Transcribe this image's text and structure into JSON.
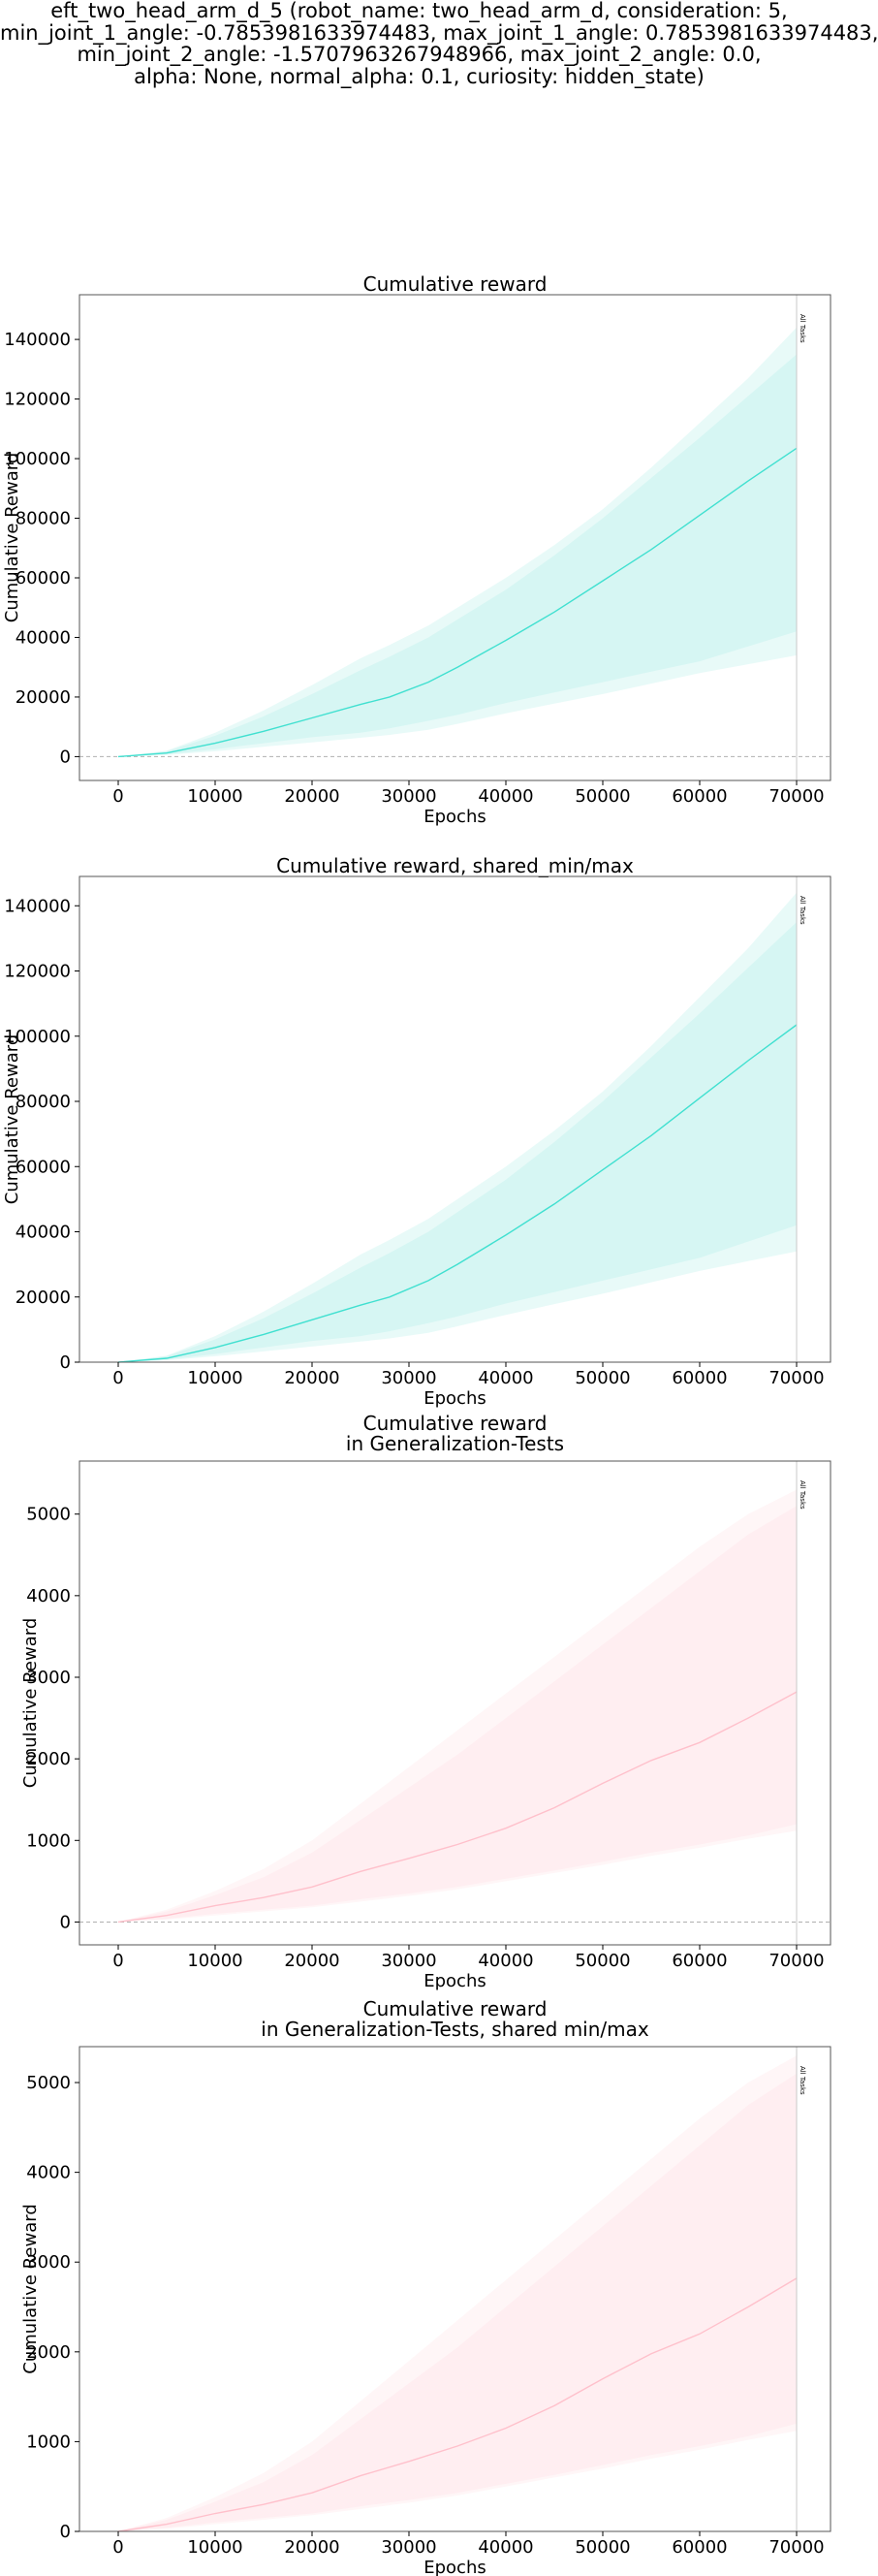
{
  "suptitle": [
    "eft_two_head_arm_d_5 (robot_name: two_head_arm_d, consideration: 5,",
    "min_joint_1_angle: -0.7853981633974483, max_joint_1_angle: 0.7853981633974483,",
    "min_joint_2_angle: -1.5707963267948966, max_joint_2_angle: 0.0,",
    "alpha: None, normal_alpha: 0.1, curiosity: hidden_state)"
  ],
  "colors": {
    "train": "#40e0d0",
    "train_band": "#d6f6f3",
    "test": "#ffc0cb",
    "test_band": "#ffeef1"
  },
  "chart_data": [
    {
      "type": "line",
      "title": [
        "Cumulative reward"
      ],
      "xlabel": "Epochs",
      "ylabel": "Cumulative Reward",
      "xlim": [
        -4000,
        73500
      ],
      "ylim": [
        -8000,
        155000
      ],
      "xticks": [
        0,
        10000,
        20000,
        30000,
        40000,
        50000,
        60000,
        70000
      ],
      "yticks": [
        0,
        20000,
        40000,
        60000,
        80000,
        100000,
        120000,
        140000
      ],
      "zero_line": true,
      "vline": {
        "x": 70000,
        "label": "All Tasks"
      },
      "color": "train",
      "series": [
        {
          "x": [
            0,
            5000,
            10000,
            15000,
            20000,
            25000,
            28000,
            32000,
            35000,
            40000,
            45000,
            50000,
            55000,
            60000,
            65000,
            70000
          ],
          "mean": [
            0,
            1200,
            4500,
            8500,
            13000,
            17500,
            20000,
            25000,
            30000,
            39000,
            48500,
            59000,
            69500,
            81000,
            92500,
            103500
          ],
          "min": [
            0,
            800,
            2500,
            4500,
            6500,
            8000,
            9500,
            12000,
            14000,
            18000,
            21500,
            25000,
            28500,
            32000,
            37000,
            42000
          ],
          "max": [
            0,
            1800,
            7000,
            13500,
            21000,
            29000,
            33500,
            40000,
            46000,
            56000,
            67500,
            80000,
            93500,
            107000,
            121000,
            135000
          ],
          "outer_min": [
            0,
            600,
            1800,
            3300,
            4800,
            6300,
            7300,
            9000,
            11000,
            14500,
            17800,
            21000,
            24500,
            28000,
            31000,
            34000
          ],
          "outer_max": [
            0,
            2000,
            8000,
            15500,
            24000,
            33000,
            37500,
            44000,
            50000,
            60000,
            71000,
            83000,
            97000,
            112000,
            127000,
            144000
          ]
        }
      ]
    },
    {
      "type": "line",
      "title": [
        "Cumulative reward, shared_min/max"
      ],
      "xlabel": "Epochs",
      "ylabel": "Cumulative Reward",
      "xlim": [
        -4000,
        73500
      ],
      "ylim": [
        0,
        149000
      ],
      "xticks": [
        0,
        10000,
        20000,
        30000,
        40000,
        50000,
        60000,
        70000
      ],
      "yticks": [
        0,
        20000,
        40000,
        60000,
        80000,
        100000,
        120000,
        140000
      ],
      "zero_line": false,
      "vline": {
        "x": 70000,
        "label": "All Tasks"
      },
      "color": "train",
      "series": [
        {
          "x": [
            0,
            5000,
            10000,
            15000,
            20000,
            25000,
            28000,
            32000,
            35000,
            40000,
            45000,
            50000,
            55000,
            60000,
            65000,
            70000
          ],
          "mean": [
            0,
            1200,
            4500,
            8500,
            13000,
            17500,
            20000,
            25000,
            30000,
            39000,
            48500,
            59000,
            69500,
            81000,
            92500,
            103500
          ],
          "min": [
            0,
            800,
            2500,
            4500,
            6500,
            8000,
            9500,
            12000,
            14000,
            18000,
            21500,
            25000,
            28500,
            32000,
            37000,
            42000
          ],
          "max": [
            0,
            1800,
            7000,
            13500,
            21000,
            29000,
            33500,
            40000,
            46000,
            56000,
            67500,
            80000,
            93500,
            107000,
            121000,
            135000
          ],
          "outer_min": [
            0,
            600,
            1800,
            3300,
            4800,
            6300,
            7300,
            9000,
            11000,
            14500,
            17800,
            21000,
            24500,
            28000,
            31000,
            34000
          ],
          "outer_max": [
            0,
            2000,
            8000,
            15500,
            24000,
            33000,
            37500,
            44000,
            50000,
            60000,
            71000,
            83000,
            97000,
            112000,
            127000,
            144000
          ]
        }
      ]
    },
    {
      "type": "line",
      "title": [
        "Cumulative reward",
        "in Generalization-Tests"
      ],
      "xlabel": "Epochs",
      "ylabel": "Cumulative Reward",
      "xlim": [
        -4000,
        73500
      ],
      "ylim": [
        -280,
        5650
      ],
      "xticks": [
        0,
        10000,
        20000,
        30000,
        40000,
        50000,
        60000,
        70000
      ],
      "yticks": [
        0,
        1000,
        2000,
        3000,
        4000,
        5000
      ],
      "zero_line": true,
      "vline": {
        "x": 70000,
        "label": "All Tasks"
      },
      "color": "test",
      "series": [
        {
          "x": [
            0,
            5000,
            10000,
            15000,
            20000,
            25000,
            30000,
            35000,
            40000,
            45000,
            50000,
            55000,
            60000,
            65000,
            70000
          ],
          "mean": [
            0,
            80,
            200,
            300,
            430,
            620,
            780,
            950,
            1150,
            1400,
            1700,
            1980,
            2200,
            2500,
            2820
          ],
          "min": [
            0,
            40,
            100,
            150,
            200,
            280,
            350,
            430,
            530,
            630,
            740,
            850,
            950,
            1060,
            1200
          ],
          "max": [
            0,
            130,
            330,
            550,
            850,
            1250,
            1650,
            2050,
            2500,
            2950,
            3400,
            3850,
            4300,
            4750,
            5100
          ],
          "outer_min": [
            0,
            30,
            80,
            130,
            180,
            250,
            320,
            400,
            500,
            600,
            700,
            810,
            910,
            1020,
            1120
          ],
          "outer_max": [
            0,
            150,
            380,
            650,
            1000,
            1450,
            1900,
            2350,
            2800,
            3250,
            3700,
            4150,
            4600,
            5000,
            5300
          ]
        }
      ]
    },
    {
      "type": "line",
      "title": [
        "Cumulative reward",
        "in Generalization-Tests, shared min/max"
      ],
      "xlabel": "Epochs",
      "ylabel": "Cumulative Reward",
      "xlim": [
        -4000,
        73500
      ],
      "ylim": [
        0,
        5400
      ],
      "xticks": [
        0,
        10000,
        20000,
        30000,
        40000,
        50000,
        60000,
        70000
      ],
      "yticks": [
        0,
        1000,
        2000,
        3000,
        4000,
        5000
      ],
      "zero_line": false,
      "vline": {
        "x": 70000,
        "label": "All Tasks"
      },
      "color": "test",
      "series": [
        {
          "x": [
            0,
            5000,
            10000,
            15000,
            20000,
            25000,
            30000,
            35000,
            40000,
            45000,
            50000,
            55000,
            60000,
            65000,
            70000
          ],
          "mean": [
            0,
            80,
            200,
            300,
            430,
            620,
            780,
            950,
            1150,
            1400,
            1700,
            1980,
            2200,
            2500,
            2820
          ],
          "min": [
            0,
            40,
            100,
            150,
            200,
            280,
            350,
            430,
            530,
            630,
            740,
            850,
            950,
            1060,
            1200
          ],
          "max": [
            0,
            130,
            330,
            550,
            850,
            1250,
            1650,
            2050,
            2500,
            2950,
            3400,
            3850,
            4300,
            4750,
            5100
          ],
          "outer_min": [
            0,
            30,
            80,
            130,
            180,
            250,
            320,
            400,
            500,
            600,
            700,
            810,
            910,
            1020,
            1120
          ],
          "outer_max": [
            0,
            150,
            380,
            650,
            1000,
            1450,
            1900,
            2350,
            2800,
            3250,
            3700,
            4150,
            4600,
            5000,
            5300
          ]
        }
      ]
    }
  ]
}
